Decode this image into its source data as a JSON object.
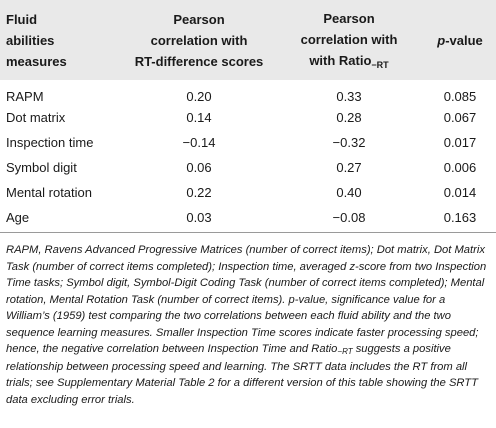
{
  "table": {
    "headers": [
      [
        "Fluid",
        "abilities",
        "measures"
      ],
      [
        "Pearson",
        "correlation with",
        "RT-difference scores"
      ],
      [
        "Pearson",
        "correlation with",
        "with Ratio"
      ],
      [
        "p",
        "-value"
      ]
    ],
    "header_subscript": "−RT",
    "rows": [
      {
        "measure": "RAPM",
        "rt_diff": "0.20",
        "ratio": "0.33",
        "p": "0.085"
      },
      {
        "measure": "Dot matrix",
        "rt_diff": "0.14",
        "ratio": "0.28",
        "p": "0.067"
      },
      {
        "measure": "Inspection time",
        "rt_diff": "−0.14",
        "ratio": "−0.32",
        "p": "0.017"
      },
      {
        "measure": "Symbol digit",
        "rt_diff": "0.06",
        "ratio": "0.27",
        "p": "0.006"
      },
      {
        "measure": "Mental rotation",
        "rt_diff": "0.22",
        "ratio": "0.40",
        "p": "0.014"
      },
      {
        "measure": "Age",
        "rt_diff": "0.03",
        "ratio": "−0.08",
        "p": "0.163"
      }
    ]
  },
  "footnote": {
    "part1": "RAPM, Ravens Advanced Progressive Matrices (number of correct items); Dot matrix, Dot Matrix Task (number of correct items completed); Inspection time, averaged z-score from two Inspection Time tasks; Symbol digit, Symbol-Digit Coding Task (number of correct items completed); Mental rotation, Mental Rotation Task (number of correct items). p-value, significance value for a William’s (1959) test comparing the two correlations between each fluid ability and the two sequence learning measures. Smaller Inspection Time scores indicate faster processing speed; hence, the negative correlation between Inspection Time and Ratio",
    "subscript": "−RT",
    "part2": " suggests a positive relationship between processing speed and learning. The SRTT data includes the RT from all trials; see Supplementary Material Table 2 for a different version of this table showing the SRTT data excluding error trials."
  }
}
